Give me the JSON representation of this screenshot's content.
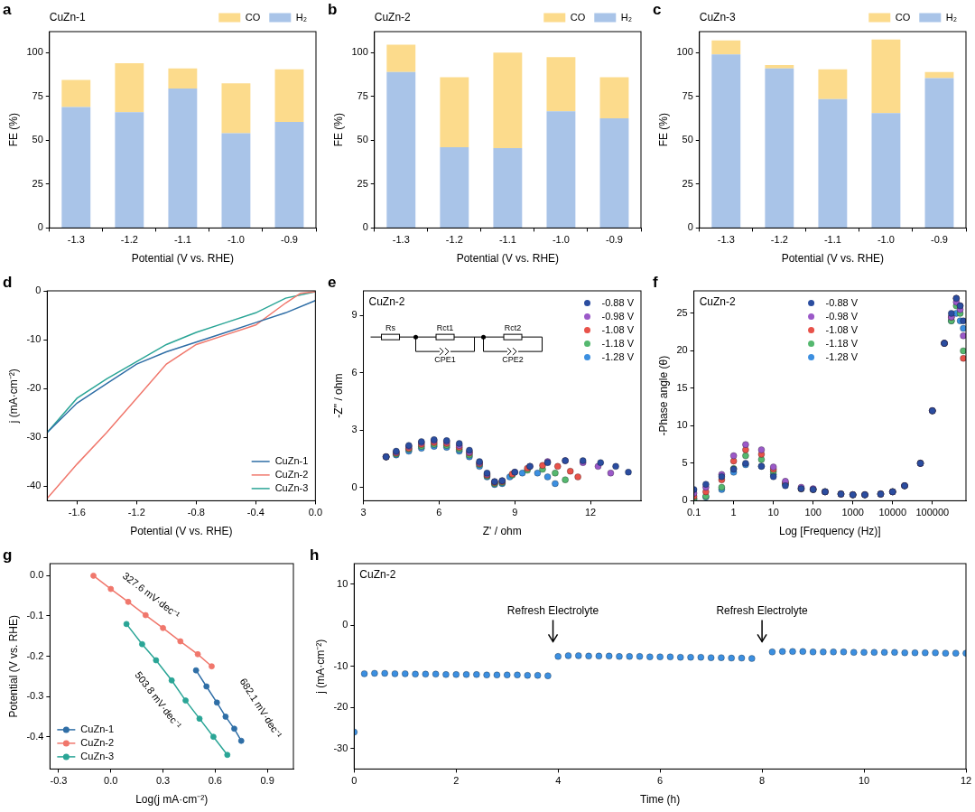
{
  "chart_data": [
    {
      "panel": "a",
      "type": "bar",
      "title": "CuZn-1",
      "x_label": "Potential (V vs. RHE)",
      "y_label": "FE (%)",
      "categories": [
        "-1.3",
        "-1.2",
        "-1.1",
        "-1.0",
        "-0.9"
      ],
      "series": [
        {
          "name": "H₂",
          "color": "#a9c4e8",
          "values": [
            69,
            66,
            79.5,
            54,
            60.5
          ]
        },
        {
          "name": "CO",
          "color": "#fcdb8c",
          "values": [
            15.5,
            28,
            11.5,
            28.5,
            30
          ]
        }
      ],
      "stacked": true,
      "ylim": [
        0,
        112
      ],
      "yticks": [
        0,
        25,
        50,
        75,
        100
      ],
      "grid": false,
      "legend": "top right"
    },
    {
      "panel": "b",
      "type": "bar",
      "title": "CuZn-2",
      "x_label": "Potential (V vs. RHE)",
      "y_label": "FE (%)",
      "categories": [
        "-1.3",
        "-1.2",
        "-1.1",
        "-1.0",
        "-0.9"
      ],
      "series": [
        {
          "name": "H₂",
          "color": "#a9c4e8",
          "values": [
            89,
            46,
            45.5,
            66.5,
            62.5
          ]
        },
        {
          "name": "CO",
          "color": "#fcdb8c",
          "values": [
            15.5,
            40,
            54.5,
            31,
            23.5
          ]
        }
      ],
      "stacked": true,
      "ylim": [
        0,
        112
      ],
      "yticks": [
        0,
        25,
        50,
        75,
        100
      ],
      "grid": false,
      "legend": "top right"
    },
    {
      "panel": "c",
      "type": "bar",
      "title": "CuZn-3",
      "x_label": "Potential (V vs. RHE)",
      "y_label": "FE (%)",
      "categories": [
        "-1.3",
        "-1.2",
        "-1.1",
        "-1.0",
        "-0.9"
      ],
      "series": [
        {
          "name": "H₂",
          "color": "#a9c4e8",
          "values": [
            99,
            91,
            73.5,
            65.5,
            85.5
          ]
        },
        {
          "name": "CO",
          "color": "#fcdb8c",
          "values": [
            8,
            2,
            17,
            42,
            3.5
          ]
        }
      ],
      "stacked": true,
      "ylim": [
        0,
        112
      ],
      "yticks": [
        0,
        25,
        50,
        75,
        100
      ],
      "grid": false,
      "legend": "top right"
    },
    {
      "panel": "d",
      "type": "line",
      "x_label": "Potential (V vs. RHE)",
      "y_label": "j (mA·cm⁻²)",
      "series": [
        {
          "name": "CuZn-1",
          "color": "#2f6ea6",
          "x": [
            0,
            -0.2,
            -0.4,
            -0.6,
            -0.8,
            -1.0,
            -1.2,
            -1.4,
            -1.6,
            -1.8
          ],
          "values": [
            -2,
            -4.5,
            -6.5,
            -8.5,
            -10.5,
            -12.5,
            -15,
            -19,
            -23,
            -29
          ]
        },
        {
          "name": "CuZn-2",
          "color": "#f0776c",
          "x": [
            0,
            -0.1,
            -0.2,
            -0.4,
            -0.6,
            -0.8,
            -1.0,
            -1.2,
            -1.4,
            -1.6,
            -1.8
          ],
          "values": [
            -0.2,
            -0.5,
            -2.5,
            -7,
            -9,
            -11,
            -15,
            -22,
            -29,
            -35.5,
            -42.5
          ]
        },
        {
          "name": "CuZn-3",
          "color": "#2aa596",
          "x": [
            0,
            -0.2,
            -0.4,
            -0.6,
            -0.8,
            -1.0,
            -1.2,
            -1.4,
            -1.6,
            -1.8
          ],
          "values": [
            -0.2,
            -1.5,
            -4.5,
            -6.5,
            -8.5,
            -11,
            -14.5,
            -18,
            -22,
            -29
          ]
        }
      ],
      "xlim": [
        -1.8,
        0
      ],
      "xticks": [
        -1.6,
        -1.2,
        -0.8,
        -0.4,
        {
          "value": 0,
          "label": "0.0"
        }
      ],
      "ylim": [
        -43,
        0
      ],
      "yticks": [
        -40,
        -30,
        -20,
        -10,
        0
      ],
      "grid": false,
      "legend": "lower right",
      "line_style": "solid"
    },
    {
      "panel": "e",
      "type": "scatter",
      "title": "CuZn-2",
      "x_label": "Z' / ohm",
      "y_label": "-Z'' / ohm",
      "circuit": [
        "Rs",
        "Rct1",
        "CPE1",
        "Rct2",
        "CPE2"
      ],
      "series": [
        {
          "name": "-0.88 V",
          "color": "#2b4da0",
          "x": [
            3.9,
            4.3,
            4.8,
            5.3,
            5.8,
            6.3,
            6.8,
            7.2,
            7.6,
            7.9,
            8.2,
            8.5,
            9.0,
            9.6,
            10.3,
            11.0,
            11.7,
            12.4,
            13.0,
            13.5
          ],
          "values": [
            1.6,
            1.9,
            2.2,
            2.4,
            2.5,
            2.45,
            2.3,
            1.95,
            1.35,
            0.75,
            0.3,
            0.35,
            0.8,
            1.1,
            1.3,
            1.4,
            1.4,
            1.3,
            1.1,
            0.8
          ]
        },
        {
          "name": "-0.98 V",
          "color": "#9b59c8",
          "x": [
            3.9,
            4.3,
            4.8,
            5.3,
            5.8,
            6.3,
            6.8,
            7.2,
            7.6,
            7.9,
            8.2,
            8.5,
            9.0,
            9.6,
            10.3,
            11.0,
            11.7,
            12.3,
            12.8
          ],
          "values": [
            1.6,
            1.85,
            2.15,
            2.35,
            2.45,
            2.4,
            2.2,
            1.85,
            1.3,
            0.7,
            0.3,
            0.35,
            0.8,
            1.1,
            1.35,
            1.4,
            1.3,
            1.1,
            0.75
          ]
        },
        {
          "name": "-1.08 V",
          "color": "#e8524a",
          "x": [
            3.9,
            4.3,
            4.8,
            5.3,
            5.8,
            6.3,
            6.8,
            7.2,
            7.6,
            7.9,
            8.2,
            8.5,
            8.9,
            9.5,
            10.1,
            10.7,
            11.2,
            11.5
          ],
          "values": [
            1.6,
            1.8,
            2.05,
            2.25,
            2.35,
            2.3,
            2.1,
            1.8,
            1.25,
            0.65,
            0.25,
            0.3,
            0.7,
            1.0,
            1.15,
            1.1,
            0.85,
            0.55
          ]
        },
        {
          "name": "-1.18 V",
          "color": "#55b86f",
          "x": [
            3.9,
            4.3,
            4.8,
            5.3,
            5.8,
            6.3,
            6.8,
            7.2,
            7.6,
            7.9,
            8.2,
            8.5,
            8.9,
            9.5,
            10.1,
            10.6,
            11.0
          ],
          "values": [
            1.6,
            1.75,
            2.0,
            2.15,
            2.25,
            2.2,
            2.0,
            1.7,
            1.2,
            0.6,
            0.2,
            0.25,
            0.65,
            0.9,
            0.95,
            0.75,
            0.4
          ]
        },
        {
          "name": "-1.28 V",
          "color": "#3c8fe0",
          "x": [
            3.9,
            4.3,
            4.8,
            5.3,
            5.8,
            6.3,
            6.8,
            7.2,
            7.6,
            7.9,
            8.2,
            8.5,
            8.8,
            9.3,
            9.9,
            10.3,
            10.6
          ],
          "values": [
            1.6,
            1.7,
            1.9,
            2.05,
            2.15,
            2.1,
            1.9,
            1.6,
            1.1,
            0.55,
            0.15,
            0.2,
            0.55,
            0.75,
            0.75,
            0.55,
            0.2
          ]
        }
      ],
      "xlim": [
        3,
        14
      ],
      "xticks": [
        3,
        6,
        9,
        12
      ],
      "ylim": [
        -0.7,
        10.3
      ],
      "yticks": [
        0,
        3,
        6,
        9
      ],
      "grid": false,
      "legend": "upper right",
      "marker": "circle"
    },
    {
      "panel": "f",
      "type": "scatter",
      "title": "CuZn-2",
      "x_label": "Log [Frequency (Hz)]",
      "y_label": "-Phase angle (θ)",
      "x": [
        0.1,
        0.2,
        0.5,
        1,
        2,
        5,
        10,
        20,
        50,
        100,
        200,
        500,
        1000,
        2000,
        5000,
        10000,
        20000,
        50000,
        100000,
        200000,
        300000,
        400000,
        500000,
        600000
      ],
      "series": [
        {
          "name": "-0.88 V",
          "color": "#2b4da0",
          "values": [
            1.5,
            2.2,
            3.2,
            4.2,
            5.0,
            4.6,
            3.2,
            2.0,
            1.6,
            1.5,
            1.2,
            0.9,
            0.8,
            0.8,
            0.9,
            1.2,
            2.0,
            5,
            12,
            21,
            25,
            27,
            26,
            24
          ]
        },
        {
          "name": "-0.98 V",
          "color": "#9b59c8",
          "values": [
            1.0,
            1.8,
            3.5,
            6.0,
            7.5,
            6.8,
            4.5,
            2.6,
            1.8,
            1.6,
            1.2,
            0.9,
            0.8,
            0.8,
            0.9,
            1.2,
            2.0,
            5,
            12,
            21,
            24.5,
            26.5,
            25.5,
            22
          ]
        },
        {
          "name": "-1.08 V",
          "color": "#e8524a",
          "values": [
            0.6,
            1.2,
            2.8,
            5.3,
            6.8,
            6.2,
            4.2,
            2.4,
            1.6,
            1.5,
            1.2,
            0.9,
            0.8,
            0.8,
            0.9,
            1.2,
            2.0,
            5,
            12,
            21,
            24.5,
            27,
            26,
            19
          ]
        },
        {
          "name": "-1.18 V",
          "color": "#55b86f",
          "values": [
            0.3,
            0.6,
            1.8,
            4.3,
            6.0,
            5.5,
            3.9,
            2.3,
            1.6,
            1.5,
            1.2,
            0.9,
            0.8,
            0.8,
            0.9,
            1.2,
            2.0,
            5,
            12,
            21,
            24,
            26,
            25,
            20
          ]
        },
        {
          "name": "-1.28 V",
          "color": "#3c8fe0",
          "values": [
            0.2,
            0.5,
            1.5,
            3.8,
            4.8,
            4.6,
            3.5,
            2.2,
            1.6,
            1.5,
            1.2,
            0.9,
            0.8,
            0.8,
            0.9,
            1.2,
            2.0,
            5,
            12,
            21,
            24,
            25,
            24,
            23
          ]
        }
      ],
      "log": "x",
      "xlim": [
        0.1,
        700000
      ],
      "xticks": [
        0.1,
        1,
        10,
        100,
        1000,
        10000,
        100000
      ],
      "ylim": [
        0,
        28
      ],
      "yticks": [
        0,
        5,
        10,
        15,
        20,
        25
      ],
      "grid": false,
      "legend": "upper center",
      "marker": "circle"
    },
    {
      "panel": "g",
      "type": "line",
      "x_label": "Log(j mA·cm⁻²)",
      "y_label": "Potential (V vs. RHE)",
      "series": [
        {
          "name": "CuZn-1",
          "color": "#2f6ea6",
          "x": [
            0.49,
            0.55,
            0.61,
            0.66,
            0.71,
            0.75
          ],
          "values": [
            -0.235,
            -0.275,
            -0.315,
            -0.35,
            -0.38,
            -0.41
          ]
        },
        {
          "name": "CuZn-2",
          "color": "#f0776c",
          "x": [
            -0.1,
            0,
            0.1,
            0.2,
            0.3,
            0.4,
            0.5,
            0.58
          ],
          "values": [
            0,
            -0.033,
            -0.065,
            -0.098,
            -0.13,
            -0.163,
            -0.195,
            -0.225
          ]
        },
        {
          "name": "CuZn-3",
          "color": "#2aa596",
          "x": [
            0.09,
            0.18,
            0.26,
            0.35,
            0.43,
            0.51,
            0.59,
            0.67
          ],
          "values": [
            -0.12,
            -0.17,
            -0.21,
            -0.26,
            -0.31,
            -0.355,
            -0.4,
            -0.445
          ]
        }
      ],
      "annotations": [
        {
          "text": "327.6 mV·dec⁻¹",
          "x": 0.23,
          "y": -0.05,
          "series": "CuZn-2"
        },
        {
          "text": "682.1 mV·dec⁻¹",
          "x": 0.86,
          "y": -0.33,
          "series": "CuZn-1"
        },
        {
          "text": "503.8 mV·dec⁻¹",
          "x": 0.27,
          "y": -0.31,
          "series": "CuZn-3"
        }
      ],
      "xlim": [
        -0.35,
        1.05
      ],
      "xticks": [
        -0.3,
        {
          "value": 0,
          "label": "0.0"
        },
        0.3,
        0.6,
        0.9
      ],
      "ylim": [
        -0.48,
        0.03
      ],
      "yticks": [
        {
          "value": 0,
          "label": "0.0"
        },
        -0.1,
        -0.2,
        -0.3,
        -0.4
      ],
      "grid": false,
      "legend": "lower left",
      "marker": "circle",
      "line_style": "solid"
    },
    {
      "panel": "h",
      "type": "scatter",
      "title": "CuZn-2",
      "x_label": "Time (h)",
      "y_label": "j (mA·cm⁻²)",
      "color": "#3c8fe0",
      "x": [
        0,
        0.2,
        0.4,
        0.6,
        0.8,
        1,
        1.2,
        1.4,
        1.6,
        1.8,
        2,
        2.2,
        2.4,
        2.6,
        2.8,
        3,
        3.2,
        3.4,
        3.6,
        3.8,
        4,
        4.2,
        4.4,
        4.6,
        4.8,
        5,
        5.2,
        5.4,
        5.6,
        5.8,
        6,
        6.2,
        6.4,
        6.6,
        6.8,
        7,
        7.2,
        7.4,
        7.6,
        7.8,
        8.2,
        8.4,
        8.6,
        8.8,
        9,
        9.2,
        9.4,
        9.6,
        9.8,
        10,
        10.2,
        10.4,
        10.6,
        10.8,
        11,
        11.2,
        11.4,
        11.6,
        11.8,
        12
      ],
      "values": [
        -26,
        -11.8,
        -11.7,
        -11.7,
        -11.8,
        -11.8,
        -11.9,
        -11.9,
        -11.9,
        -12.0,
        -12.0,
        -12.0,
        -12.0,
        -12.1,
        -12.1,
        -12.1,
        -12.1,
        -12.2,
        -12.2,
        -12.3,
        -7.6,
        -7.4,
        -7.4,
        -7.5,
        -7.5,
        -7.5,
        -7.6,
        -7.6,
        -7.6,
        -7.7,
        -7.7,
        -7.7,
        -7.8,
        -7.8,
        -7.8,
        -7.9,
        -7.9,
        -8.0,
        -8.0,
        -8.1,
        -6.5,
        -6.4,
        -6.4,
        -6.4,
        -6.5,
        -6.5,
        -6.5,
        -6.5,
        -6.6,
        -6.6,
        -6.6,
        -6.6,
        -6.6,
        -6.7,
        -6.7,
        -6.7,
        -6.7,
        -6.8,
        -6.8,
        -6.8
      ],
      "annotations": [
        {
          "text": "Refresh Electrolyte",
          "x": 3.9,
          "y": -4
        },
        {
          "text": "Refresh Electrolyte",
          "x": 8,
          "y": -4
        }
      ],
      "xlim": [
        0,
        12
      ],
      "xticks": [
        0,
        2,
        4,
        6,
        8,
        10,
        12
      ],
      "ylim": [
        -35,
        15
      ],
      "yticks": [
        -30,
        -20,
        -10,
        0,
        10
      ],
      "grid": false,
      "marker": "circle"
    }
  ]
}
